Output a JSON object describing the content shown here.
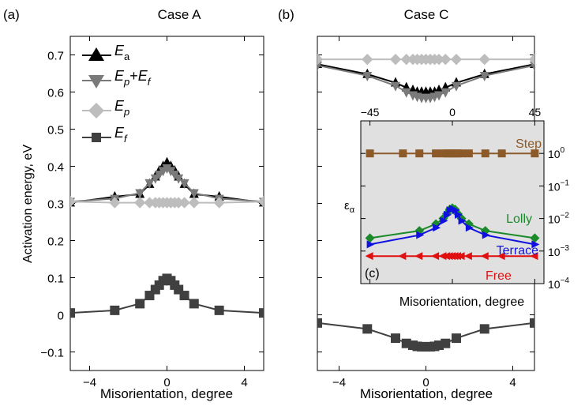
{
  "chart_data": [
    {
      "panel_label": "(a)",
      "title": "Case A",
      "type": "line",
      "xlabel": "Misorientation, degree",
      "ylabel": "Activation energy, eV",
      "xlim": [
        -5,
        5
      ],
      "ylim": [
        -0.15,
        0.75
      ],
      "xticks": [
        -4,
        0,
        4
      ],
      "xtick_labels": [
        "−4",
        "0",
        "4"
      ],
      "yticks": [
        -0.1,
        0,
        0.1,
        0.2,
        0.3,
        0.4,
        0.5,
        0.6,
        0.7
      ],
      "ytick_labels": [
        "−0.1",
        "0",
        "0.1",
        "0.2",
        "0.3",
        "0.4",
        "0.5",
        "0.6",
        "0.7"
      ],
      "legend": "top-left",
      "series": [
        {
          "name": "E_a",
          "marker": "triangle-up",
          "color": "#000000",
          "x": [
            -5,
            -2.7,
            -1.4,
            -0.9,
            -0.6,
            -0.4,
            -0.2,
            0,
            0.2,
            0.4,
            0.6,
            0.9,
            1.4,
            2.7,
            5
          ],
          "y": [
            0.302,
            0.318,
            0.325,
            0.352,
            0.372,
            0.388,
            0.4,
            0.41,
            0.4,
            0.388,
            0.372,
            0.352,
            0.325,
            0.318,
            0.302
          ]
        },
        {
          "name": "E_p+E_f",
          "marker": "triangle-down",
          "color": "#7a7a7a",
          "x": [
            -5,
            -2.7,
            -1.4,
            -0.9,
            -0.6,
            -0.4,
            -0.2,
            0,
            0.2,
            0.4,
            0.6,
            0.9,
            1.4,
            2.7,
            5
          ],
          "y": [
            0.305,
            0.313,
            0.328,
            0.355,
            0.368,
            0.378,
            0.388,
            0.395,
            0.388,
            0.378,
            0.368,
            0.355,
            0.328,
            0.313,
            0.305
          ]
        },
        {
          "name": "E_p",
          "marker": "diamond",
          "color": "#bdbdbd",
          "x": [
            -5,
            -2.7,
            -1.4,
            -0.9,
            -0.6,
            -0.4,
            -0.2,
            0,
            0.2,
            0.4,
            0.6,
            0.9,
            1.4,
            2.7,
            5
          ],
          "y": [
            0.305,
            0.302,
            0.302,
            0.302,
            0.302,
            0.302,
            0.302,
            0.302,
            0.302,
            0.302,
            0.302,
            0.302,
            0.302,
            0.302,
            0.305
          ]
        },
        {
          "name": "E_f",
          "marker": "square",
          "color": "#404040",
          "x": [
            -5,
            -2.7,
            -1.4,
            -0.9,
            -0.6,
            -0.4,
            -0.2,
            0,
            0.2,
            0.4,
            0.6,
            0.9,
            1.4,
            2.7,
            5
          ],
          "y": [
            0.005,
            0.012,
            0.03,
            0.052,
            0.068,
            0.08,
            0.092,
            0.098,
            0.092,
            0.08,
            0.068,
            0.052,
            0.03,
            0.012,
            0.005
          ]
        }
      ]
    },
    {
      "panel_label": "(b)",
      "title": "Case C",
      "type": "line",
      "xlabel": "Misorientation, degree",
      "xlim": [
        -5,
        5
      ],
      "ylim": [
        -0.15,
        0.75
      ],
      "xticks": [
        -4,
        0,
        4
      ],
      "xtick_labels": [
        "−4",
        "0",
        "4"
      ],
      "series": [
        {
          "name": "E_a",
          "marker": "triangle-up",
          "color": "#000000",
          "x": [
            -5,
            -2.7,
            -1.4,
            -0.9,
            -0.6,
            -0.4,
            -0.2,
            0,
            0.2,
            0.4,
            0.6,
            0.9,
            1.4,
            2.7,
            5
          ],
          "y": [
            0.675,
            0.648,
            0.625,
            0.612,
            0.605,
            0.6,
            0.6,
            0.6,
            0.6,
            0.6,
            0.605,
            0.612,
            0.625,
            0.648,
            0.675
          ]
        },
        {
          "name": "E_p+E_f",
          "marker": "triangle-down",
          "color": "#7a7a7a",
          "x": [
            -5,
            -2.7,
            -1.4,
            -0.9,
            -0.6,
            -0.4,
            -0.2,
            0,
            0.2,
            0.4,
            0.6,
            0.9,
            1.4,
            2.7,
            5
          ],
          "y": [
            0.672,
            0.644,
            0.617,
            0.6,
            0.592,
            0.588,
            0.585,
            0.585,
            0.585,
            0.588,
            0.592,
            0.6,
            0.617,
            0.644,
            0.672
          ]
        },
        {
          "name": "E_p",
          "marker": "diamond",
          "color": "#bdbdbd",
          "x": [
            -5,
            -2.7,
            -1.4,
            -0.9,
            -0.6,
            -0.4,
            -0.2,
            0,
            0.2,
            0.4,
            0.6,
            0.9,
            1.4,
            2.7,
            5
          ],
          "y": [
            0.688,
            0.688,
            0.688,
            0.688,
            0.688,
            0.688,
            0.688,
            0.688,
            0.688,
            0.688,
            0.688,
            0.688,
            0.688,
            0.688,
            0.688
          ]
        },
        {
          "name": "E_f",
          "marker": "square",
          "color": "#404040",
          "x": [
            -5,
            -2.7,
            -1.4,
            -0.9,
            -0.6,
            -0.4,
            -0.2,
            0,
            0.2,
            0.4,
            0.6,
            0.9,
            1.4,
            2.7,
            5
          ],
          "y": [
            -0.022,
            -0.038,
            -0.063,
            -0.077,
            -0.082,
            -0.085,
            -0.086,
            -0.086,
            -0.086,
            -0.085,
            -0.082,
            -0.077,
            -0.063,
            -0.038,
            -0.022
          ]
        }
      ]
    },
    {
      "panel_label": "(c)",
      "type": "line",
      "xlabel": "Misorientation, degree",
      "ylabel": "ε_α",
      "xlim": [
        -50,
        50
      ],
      "ylog": true,
      "ylim": [
        0.0001,
        10
      ],
      "xticks": [
        -45,
        0,
        45
      ],
      "xtick_labels": [
        "−45",
        "0",
        "45"
      ],
      "yticks": [
        1,
        0.1,
        0.01,
        0.001,
        0.0001
      ],
      "ytick_base": "10",
      "ytick_exponents": [
        "0",
        "−1",
        "−2",
        "−3",
        "−4"
      ],
      "background": "#e0e0e0",
      "series": [
        {
          "name": "Step",
          "marker": "square",
          "color": "#8c5a28",
          "x": [
            -45,
            -27,
            -18,
            -9,
            -5,
            -3,
            -1.5,
            0,
            1.5,
            3,
            5,
            9,
            18,
            27,
            45
          ],
          "y": [
            1,
            1,
            1,
            1,
            1,
            1,
            1,
            1,
            1,
            1,
            1,
            1,
            1,
            1,
            1
          ]
        },
        {
          "name": "Lolly",
          "marker": "diamond",
          "color": "#1a8a2a",
          "x": [
            -45,
            -18,
            -9,
            -5,
            -3,
            -1.5,
            0,
            1.5,
            3,
            5,
            9,
            18,
            45
          ],
          "y": [
            0.0025,
            0.0042,
            0.0068,
            0.01,
            0.014,
            0.019,
            0.021,
            0.019,
            0.014,
            0.01,
            0.0068,
            0.0042,
            0.0025
          ]
        },
        {
          "name": "Terrace",
          "marker": "triangle-right",
          "color": "#1010e0",
          "x": [
            -45,
            -18,
            -9,
            -5,
            -3,
            -1.5,
            0,
            1.5,
            3,
            5,
            9,
            18,
            45
          ],
          "y": [
            0.0016,
            0.0031,
            0.0052,
            0.0085,
            0.013,
            0.018,
            0.02,
            0.018,
            0.013,
            0.0085,
            0.0052,
            0.0031,
            0.0016
          ]
        },
        {
          "name": "Free",
          "marker": "triangle-left",
          "color": "#e01010",
          "x": [
            -45,
            -27,
            -18,
            -9,
            -5,
            -3,
            -1.5,
            0,
            1.5,
            3,
            5,
            9,
            18,
            27,
            45
          ],
          "y": [
            0.0007,
            0.0007,
            0.0007,
            0.0007,
            0.0007,
            0.0007,
            0.0007,
            0.0007,
            0.0007,
            0.0007,
            0.0007,
            0.0007,
            0.0007,
            0.0007,
            0.0007
          ]
        }
      ]
    }
  ],
  "legend_a": {
    "E_a": {
      "base": "E",
      "sub": "a"
    },
    "E_p+E_f": {
      "base1": "E",
      "sub1": "p",
      "plus": "+",
      "base2": "E",
      "sub2": "f"
    },
    "E_p": {
      "base": "E",
      "sub": "p"
    },
    "E_f": {
      "base": "E",
      "sub": "f"
    }
  },
  "ylabel_c_parts": {
    "base": "ε",
    "sub": "α"
  },
  "inset_labels": {
    "Step": "Step",
    "Lolly": "Lolly",
    "Terrace": "Terrace",
    "Free": "Free"
  }
}
